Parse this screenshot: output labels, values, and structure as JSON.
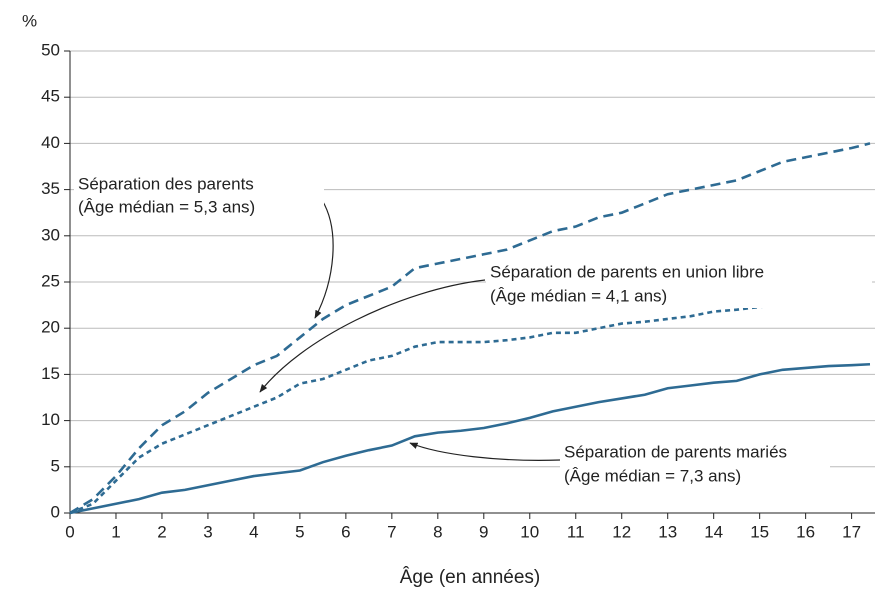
{
  "chart_data": {
    "type": "line",
    "y_label": "%",
    "x_label": "Âge (en années)",
    "x": [
      0,
      0.5,
      1,
      1.5,
      2,
      2.5,
      3,
      3.5,
      4,
      4.5,
      5,
      5.5,
      6,
      6.5,
      7,
      7.5,
      8,
      8.5,
      9,
      9.5,
      10,
      10.5,
      11,
      11.5,
      12,
      12.5,
      13,
      13.5,
      14,
      14.5,
      15,
      15.5,
      16,
      16.5,
      17,
      17.4
    ],
    "series": [
      {
        "name": "Séparation des parents",
        "note": "(Âge médian = 5,3 ans)",
        "color": "#2e6b93",
        "dash": "10,6",
        "values": [
          0,
          1.5,
          4,
          7,
          9.5,
          11,
          13,
          14.5,
          16,
          17,
          19,
          21,
          22.5,
          23.5,
          24.5,
          26.5,
          27,
          27.5,
          28,
          28.5,
          29.5,
          30.5,
          31,
          32,
          32.5,
          33.5,
          34.5,
          35,
          35.5,
          36,
          37,
          38,
          38.5,
          39,
          39.5,
          40
        ]
      },
      {
        "name": "Séparation de parents en union libre",
        "note": "(Âge médian = 4,1 ans)",
        "color": "#2e6b93",
        "dash": "5,4",
        "values": [
          0,
          1,
          3.5,
          6,
          7.5,
          8.5,
          9.5,
          10.5,
          11.5,
          12.5,
          14,
          14.5,
          15.5,
          16.5,
          17,
          18,
          18.5,
          18.5,
          18.5,
          18.7,
          19,
          19.5,
          19.5,
          20,
          20.5,
          20.7,
          21,
          21.3,
          21.8,
          22,
          22.3,
          22.5,
          23,
          23.2,
          23.5,
          23.8
        ]
      },
      {
        "name": "Séparation de parents mariés",
        "note": "(Âge médian = 7,3 ans)",
        "color": "#2e6b93",
        "dash": "none",
        "values": [
          0,
          0.5,
          1,
          1.5,
          2.2,
          2.5,
          3,
          3.5,
          4,
          4.3,
          4.6,
          5.5,
          6.2,
          6.8,
          7.3,
          8.3,
          8.7,
          8.9,
          9.2,
          9.7,
          10.3,
          11,
          11.5,
          12,
          12.4,
          12.8,
          13.5,
          13.8,
          14.1,
          14.3,
          15,
          15.5,
          15.7,
          15.9,
          16,
          16.1
        ]
      }
    ],
    "xlim": [
      0,
      17.4
    ],
    "xticks": [
      0,
      1,
      2,
      3,
      4,
      5,
      6,
      7,
      8,
      9,
      10,
      11,
      12,
      13,
      14,
      15,
      16,
      17
    ],
    "ylim": [
      0,
      50
    ],
    "yticks": [
      0,
      5,
      10,
      15,
      20,
      25,
      30,
      35,
      40,
      45,
      50
    ],
    "grid": true
  }
}
